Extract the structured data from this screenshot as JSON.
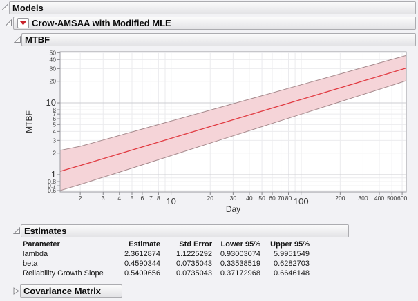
{
  "outline": {
    "models": {
      "label": "Models",
      "expanded": true
    },
    "model": {
      "label": "Crow-AMSAA with Modified MLE",
      "expanded": true
    },
    "mtbf": {
      "label": "MTBF",
      "expanded": true
    },
    "estimates": {
      "label": "Estimates",
      "expanded": true
    },
    "covariance": {
      "label": "Covariance Matrix",
      "expanded": false
    }
  },
  "icons": {
    "disclosure_open": "open-disclosure-triangle",
    "disclosure_closed": "closed-disclosure-triangle",
    "red_menu": "red-triangle-menu"
  },
  "colors": {
    "page_bg": "#f2f2f5",
    "band_fill": "#f5d4d8",
    "band_edge": "#a5898c",
    "fit_line": "#e13b42",
    "grid_minor": "#ebebee",
    "grid_major": "#cccdd2",
    "frame": "#9a9aa0",
    "red_menu_icon": "#c8232b"
  },
  "chart_data": {
    "type": "line",
    "xlabel": "Day",
    "ylabel": "MTBF",
    "x_scale": "log",
    "y_scale": "log",
    "xlim": [
      1.4,
      645
    ],
    "ylim": [
      0.575,
      51.5
    ],
    "grid": true,
    "legend_position": "none",
    "x_grid": [
      2,
      3,
      4,
      5,
      6,
      7,
      8,
      9,
      10,
      20,
      30,
      40,
      50,
      60,
      70,
      80,
      90,
      100,
      200,
      300,
      400,
      500,
      600
    ],
    "x_tick_labels": [
      2,
      3,
      4,
      5,
      6,
      7,
      8,
      10,
      20,
      30,
      40,
      50,
      60,
      70,
      80,
      100,
      200,
      300,
      400,
      500,
      600
    ],
    "x_major": [
      10,
      100
    ],
    "y_grid": [
      0.6,
      0.7,
      0.8,
      0.9,
      1,
      2,
      3,
      4,
      5,
      6,
      7,
      8,
      9,
      10,
      20,
      30,
      40,
      50
    ],
    "y_tick_labels": [
      0.6,
      0.7,
      0.8,
      1,
      2,
      3,
      4,
      5,
      6,
      7,
      8,
      10,
      20,
      30,
      40,
      50
    ],
    "y_major": [
      1,
      10
    ],
    "x": [
      1.4,
      2,
      3,
      5,
      10,
      20,
      50,
      100,
      200,
      400,
      645
    ],
    "series": [
      {
        "name": "MTBF estimate",
        "values": [
          1.11,
          1.34,
          1.67,
          2.2,
          3.21,
          4.67,
          7.66,
          11.14,
          16.21,
          23.58,
          30.55
        ]
      },
      {
        "name": "Lower 95% confidence limit",
        "values": [
          0.6,
          0.73,
          0.92,
          1.23,
          1.84,
          2.75,
          4.66,
          6.95,
          10.37,
          15.44,
          20.37
        ]
      },
      {
        "name": "Upper 95% confidence limit",
        "values": [
          2.18,
          2.48,
          3.04,
          3.94,
          5.59,
          7.93,
          12.59,
          17.87,
          25.34,
          36.01,
          45.83
        ]
      }
    ]
  },
  "estimates_table": {
    "columns": [
      "Parameter",
      "Estimate",
      "Std Error",
      "Lower 95%",
      "Upper 95%"
    ],
    "rows": [
      {
        "parameter": "lambda",
        "estimate": "2.3612874",
        "std_error": "1.1225292",
        "lower": "0.93003074",
        "upper": "5.9951549"
      },
      {
        "parameter": "beta",
        "estimate": "0.4590344",
        "std_error": "0.0735043",
        "lower": "0.33538519",
        "upper": "0.6282703"
      },
      {
        "parameter": "Reliability Growth Slope",
        "estimate": "0.5409656",
        "std_error": "0.0735043",
        "lower": "0.37172968",
        "upper": "0.6646148"
      }
    ]
  }
}
